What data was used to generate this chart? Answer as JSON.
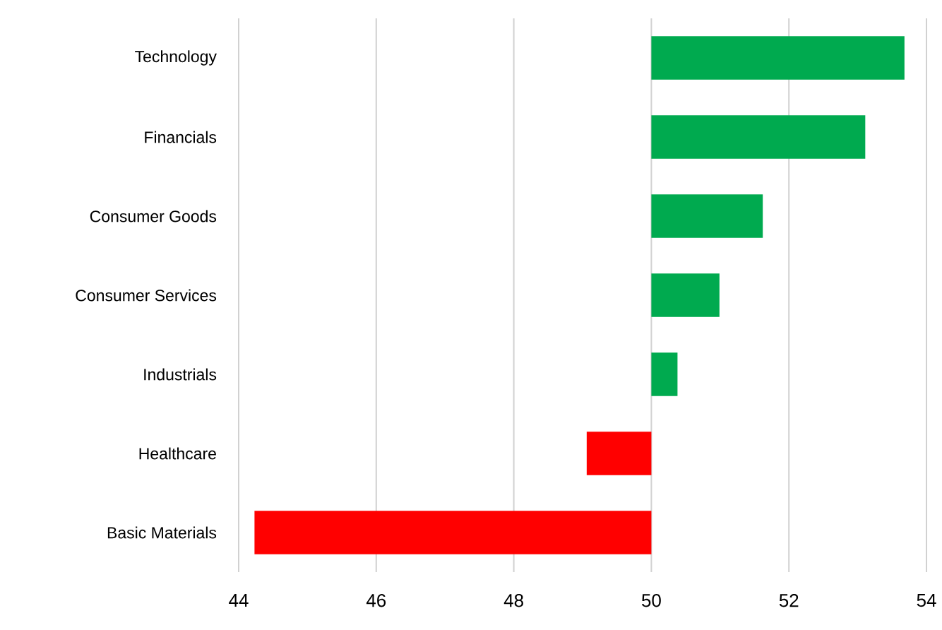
{
  "chart_data": {
    "type": "bar",
    "orientation": "horizontal",
    "categories": [
      "Technology",
      "Financials",
      "Consumer Goods",
      "Consumer Services",
      "Industrials",
      "Healthcare",
      "Basic Materials"
    ],
    "base": [
      50,
      50,
      50,
      50,
      50,
      50,
      50
    ],
    "values": [
      3.68,
      3.11,
      1.62,
      0.99,
      0.38,
      -0.94,
      -5.77
    ],
    "colors": [
      "#00aa4f",
      "#00aa4f",
      "#00aa4f",
      "#00aa4f",
      "#00aa4f",
      "#ff0000",
      "#ff0000"
    ],
    "xlim": [
      44,
      54
    ],
    "xticks": [
      44,
      46,
      48,
      50,
      52,
      54
    ],
    "grid": "x"
  }
}
